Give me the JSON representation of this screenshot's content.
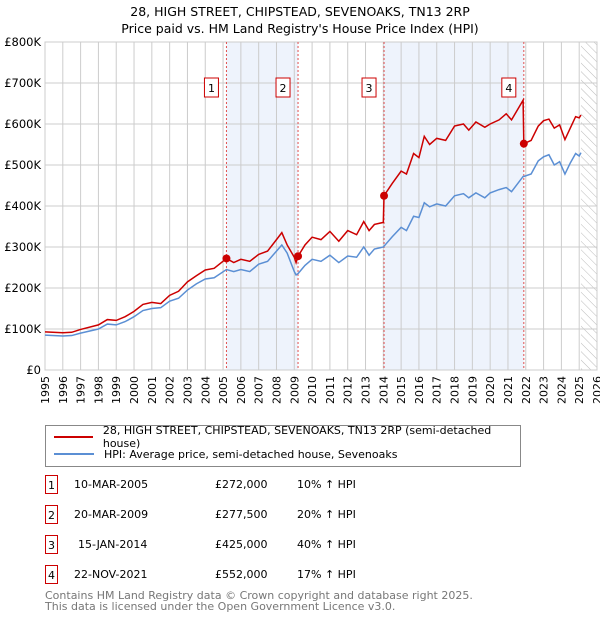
{
  "title_line1": "28, HIGH STREET, CHIPSTEAD, SEVENOAKS, TN13 2RP",
  "title_line2": "Price paid vs. HM Land Registry's House Price Index (HPI)",
  "chart_data": {
    "type": "line",
    "xlim": [
      1995,
      2026
    ],
    "ylim": [
      0,
      800000
    ],
    "yticks": [
      {
        "v": 0,
        "label": "£0"
      },
      {
        "v": 100000,
        "label": "£100K"
      },
      {
        "v": 200000,
        "label": "£200K"
      },
      {
        "v": 300000,
        "label": "£300K"
      },
      {
        "v": 400000,
        "label": "£400K"
      },
      {
        "v": 500000,
        "label": "£500K"
      },
      {
        "v": 600000,
        "label": "£600K"
      },
      {
        "v": 700000,
        "label": "£700K"
      },
      {
        "v": 800000,
        "label": "£800K"
      }
    ],
    "xticks": [
      1995,
      1996,
      1997,
      1998,
      1999,
      2000,
      2001,
      2002,
      2003,
      2004,
      2005,
      2006,
      2007,
      2008,
      2009,
      2010,
      2011,
      2012,
      2013,
      2014,
      2015,
      2016,
      2017,
      2018,
      2019,
      2020,
      2021,
      2022,
      2023,
      2024,
      2025,
      2026
    ],
    "shaded_periods": [
      [
        2005.19,
        2009.21
      ],
      [
        2014.04,
        2021.89
      ]
    ],
    "forecast_hatch_from": 2025.1,
    "colors": {
      "price": "#cc0000",
      "hpi": "#5b8fd4",
      "shade": "#eef3fc"
    },
    "x": [
      1995.0,
      1996.0,
      1996.5,
      1997.0,
      1998.0,
      1998.5,
      1999.0,
      1999.5,
      2000.0,
      2000.5,
      2001.0,
      2001.5,
      2002.0,
      2002.5,
      2003.0,
      2003.5,
      2004.0,
      2004.5,
      2005.19,
      2005.6,
      2006.0,
      2006.5,
      2007.0,
      2007.5,
      2008.0,
      2008.3,
      2008.6,
      2009.0,
      2009.1,
      2009.21,
      2009.6,
      2010.0,
      2010.5,
      2011.0,
      2011.5,
      2012.0,
      2012.5,
      2012.9,
      2013.2,
      2013.5,
      2014.0,
      2014.04,
      2014.5,
      2015.0,
      2015.3,
      2015.7,
      2016.0,
      2016.3,
      2016.6,
      2017.0,
      2017.5,
      2018.0,
      2018.5,
      2018.8,
      2019.2,
      2019.7,
      2020.0,
      2020.5,
      2020.9,
      2021.2,
      2021.85,
      2021.89,
      2022.3,
      2022.7,
      2023.0,
      2023.3,
      2023.6,
      2023.9,
      2024.2,
      2024.5,
      2024.8,
      2025.0,
      2025.1
    ],
    "series": [
      {
        "name": "28, HIGH STREET, CHIPSTEAD, SEVENOAKS, TN13 2RP (semi-detached house)",
        "values": [
          93,
          91,
          92,
          99,
          110,
          123,
          121,
          130,
          143,
          160,
          165,
          162,
          182,
          192,
          215,
          230,
          244,
          248,
          272,
          262,
          270,
          265,
          282,
          290,
          318,
          335,
          305,
          275,
          262,
          277.5,
          305,
          324,
          318,
          338,
          314,
          340,
          330,
          362,
          340,
          355,
          360,
          425,
          455,
          485,
          478,
          528,
          518,
          570,
          550,
          565,
          560,
          595,
          600,
          585,
          605,
          592,
          600,
          610,
          625,
          610,
          658,
          552,
          560,
          595,
          608,
          612,
          590,
          598,
          562,
          590,
          618,
          615,
          622
        ]
      },
      {
        "name": "HPI: Average price, semi-detached house, Sevenoaks",
        "values": [
          85,
          83,
          84,
          90,
          100,
          112,
          110,
          118,
          130,
          145,
          150,
          152,
          168,
          175,
          195,
          210,
          222,
          225,
          245,
          240,
          245,
          240,
          258,
          265,
          290,
          305,
          285,
          240,
          232,
          235,
          255,
          270,
          265,
          280,
          262,
          278,
          275,
          300,
          280,
          295,
          300,
          302,
          325,
          348,
          340,
          375,
          372,
          408,
          398,
          405,
          400,
          425,
          430,
          420,
          432,
          420,
          432,
          440,
          445,
          435,
          472,
          472,
          478,
          510,
          520,
          525,
          500,
          508,
          478,
          505,
          528,
          522,
          530
        ]
      }
    ],
    "value_unit": "thousands GBP",
    "sales": [
      {
        "n": "1",
        "date": "10-MAR-2005",
        "x": 2005.19,
        "price": "£272,000",
        "value": 272,
        "hpi": "10% ↑ HPI"
      },
      {
        "n": "2",
        "date": "20-MAR-2009",
        "x": 2009.21,
        "price": "£277,500",
        "value": 277.5,
        "hpi": "20% ↑ HPI"
      },
      {
        "n": "3",
        "date": "15-JAN-2014",
        "x": 2014.04,
        "price": "£425,000",
        "value": 425,
        "hpi": "40% ↑ HPI"
      },
      {
        "n": "4",
        "date": "22-NOV-2021",
        "x": 2021.89,
        "price": "£552,000",
        "value": 552,
        "hpi": "17% ↑ HPI"
      }
    ]
  },
  "legend": {
    "price": "28, HIGH STREET, CHIPSTEAD, SEVENOAKS, TN13 2RP (semi-detached house)",
    "hpi": "HPI: Average price, semi-detached house, Sevenoaks"
  },
  "footer": {
    "line1": "Contains HM Land Registry data © Crown copyright and database right 2025.",
    "line2": "This data is licensed under the Open Government Licence v3.0."
  }
}
